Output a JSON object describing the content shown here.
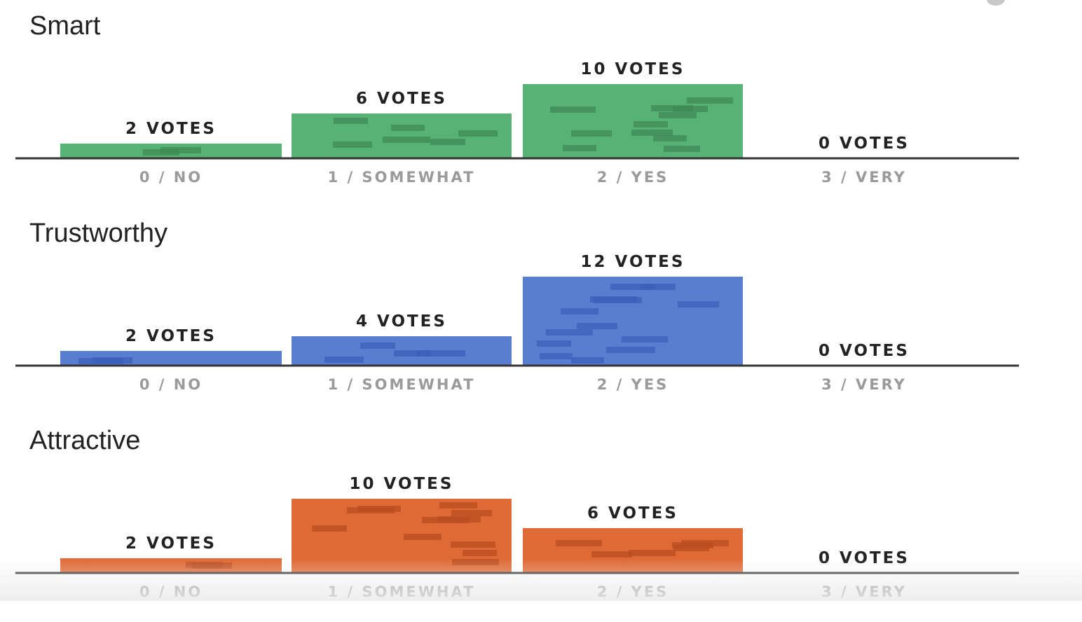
{
  "chart_data": [
    {
      "type": "bar",
      "title": "Smart",
      "categories": [
        "0 / NO",
        "1 / SOMEWHAT",
        "2 / YES",
        "3 / VERY"
      ],
      "values": [
        2,
        6,
        10,
        0
      ],
      "value_labels": [
        "2 VOTES",
        "6 VOTES",
        "10 VOTES",
        "0 VOTES"
      ],
      "color": "#57b276",
      "texture_color": "#3f8a56",
      "ylim": [
        0,
        12
      ]
    },
    {
      "type": "bar",
      "title": "Trustworthy",
      "categories": [
        "0 / NO",
        "1 / SOMEWHAT",
        "2 / YES",
        "3 / VERY"
      ],
      "values": [
        2,
        4,
        12,
        0
      ],
      "value_labels": [
        "2 VOTES",
        "4 VOTES",
        "12 VOTES",
        "0 VOTES"
      ],
      "color": "#587fcf",
      "texture_color": "#3b5fb8",
      "ylim": [
        0,
        12
      ]
    },
    {
      "type": "bar",
      "title": "Attractive",
      "categories": [
        "0 / NO",
        "1 / SOMEWHAT",
        "2 / YES",
        "3 / VERY"
      ],
      "values": [
        2,
        10,
        6,
        0
      ],
      "value_labels": [
        "2 VOTES",
        "10 VOTES",
        "6 VOTES",
        "0 VOTES"
      ],
      "color": "#e06a35",
      "texture_color": "#b94d22",
      "ylim": [
        0,
        12
      ]
    }
  ]
}
